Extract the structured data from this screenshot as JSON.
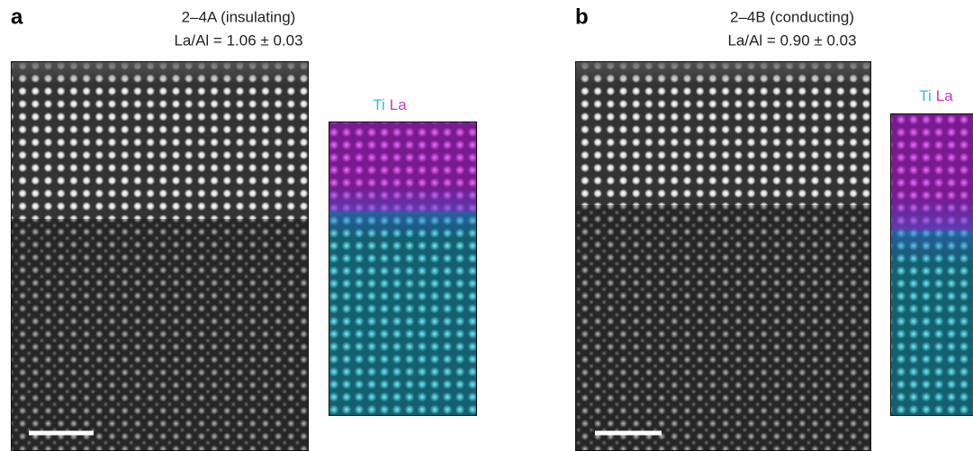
{
  "panels": [
    {
      "label": "a",
      "title": "2–4A (insulating)",
      "ratio": "La/Al = 1.06 ± 0.03",
      "map_legend": [
        "Ti",
        "La"
      ]
    },
    {
      "label": "b",
      "title": "2–4B (conducting)",
      "ratio": "La/Al = 0.90 ± 0.03",
      "map_legend": [
        "Ti",
        "La"
      ]
    }
  ]
}
